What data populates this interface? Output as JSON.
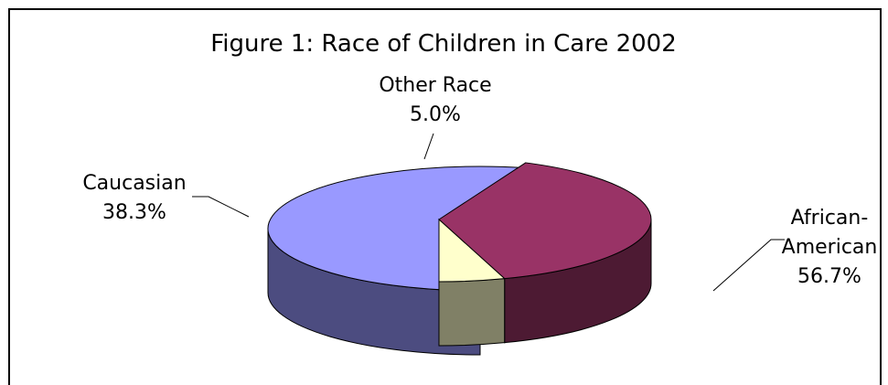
{
  "chart_data": {
    "type": "pie",
    "title": "Figure 1: Race of Children in Care 2002",
    "slices": [
      {
        "label_lines": [
          "African-",
          "American"
        ],
        "value_label": "56.7%",
        "value": 56.7,
        "color": "#9999ff",
        "side_color": "#4c4c80",
        "exploded": true
      },
      {
        "label_lines": [
          "Caucasian"
        ],
        "value_label": "38.3%",
        "value": 38.3,
        "color": "#993366",
        "side_color": "#4d1a33",
        "exploded": false
      },
      {
        "label_lines": [
          "Other Race"
        ],
        "value_label": "5.0%",
        "value": 5.0,
        "color": "#ffffcc",
        "side_color": "#808066",
        "exploded": false
      }
    ],
    "three_d": true,
    "legend": "none"
  }
}
